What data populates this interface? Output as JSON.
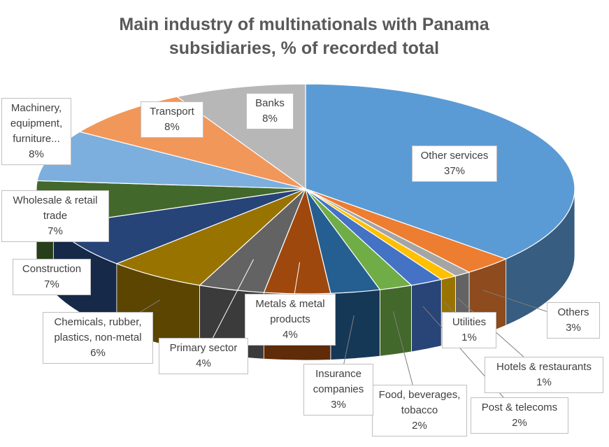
{
  "chart_data": {
    "type": "pie3d",
    "title": "Main industry of multinationals with Panama subsidiaries, % of recorded total",
    "categories": [
      "Other services",
      "Others",
      "Hotels & restaurants",
      "Utilities",
      "Post & telecoms",
      "Food, beverages, tobacco",
      "Insurance companies",
      "Metals & metal products",
      "Primary sector",
      "Chemicals, rubber, plastics, non-metal",
      "Construction",
      "Wholesale & retail trade",
      "Machinery, equipment, furniture...",
      "Transport",
      "Banks"
    ],
    "values": [
      37,
      3,
      1,
      1,
      2,
      2,
      3,
      4,
      4,
      6,
      7,
      7,
      8,
      8,
      8
    ],
    "value_labels": [
      "37%",
      "3%",
      "1%",
      "1%",
      "2%",
      "2%",
      "3%",
      "4%",
      "4%",
      "6%",
      "7%",
      "7%",
      "8%",
      "8%",
      "8%"
    ],
    "colors": [
      "#5b9bd5",
      "#ed7d31",
      "#a5a5a5",
      "#ffc000",
      "#4472c4",
      "#70ad47",
      "#255e91",
      "#9e480e",
      "#636363",
      "#997300",
      "#264478",
      "#43682b",
      "#7cafdd",
      "#f1975a",
      "#b7b7b7"
    ]
  }
}
